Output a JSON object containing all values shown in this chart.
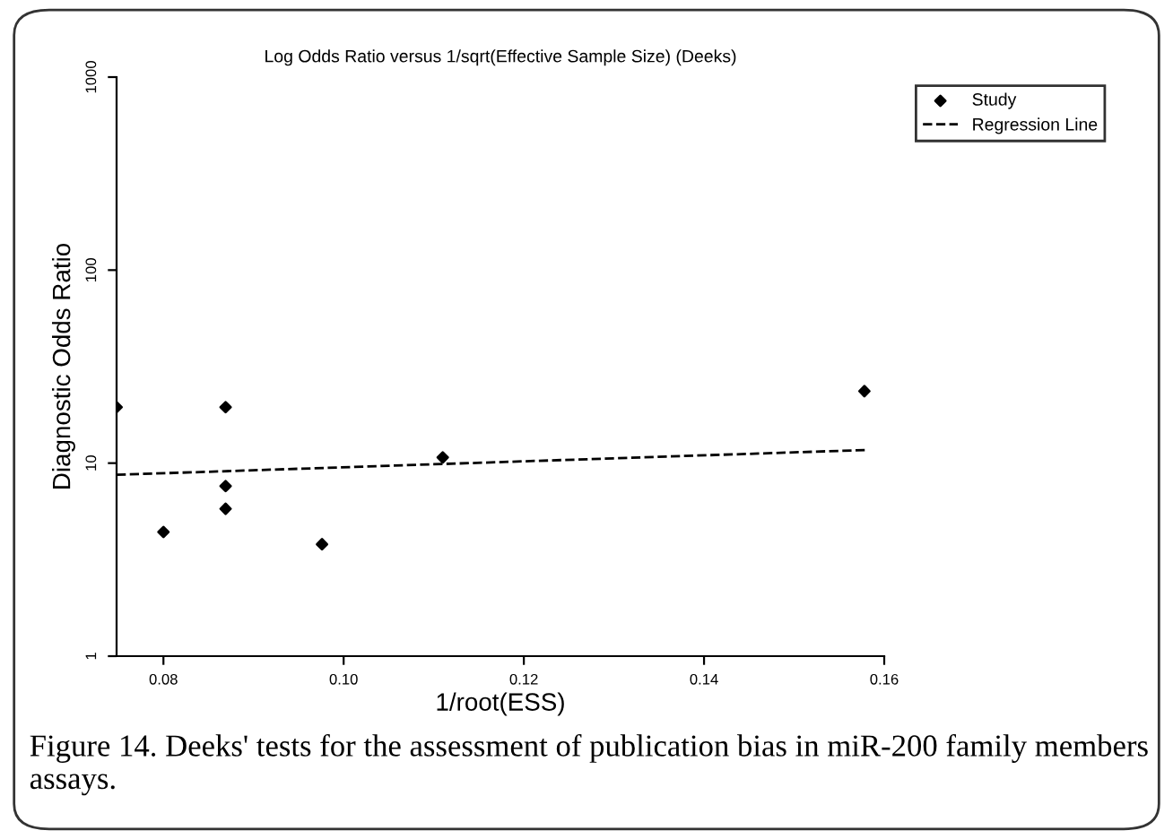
{
  "chart_data": {
    "type": "scatter",
    "title": "Log Odds Ratio versus 1/sqrt(Effective Sample Size) (Deeks)",
    "xlabel": "1/root(ESS)",
    "ylabel": "Diagnostic Odds Ratio",
    "annotations": [
      "Figure 14. Deeks' tests for the assessment of publication bias in miR-200 family members assays."
    ],
    "log": "y",
    "xlim": [
      0.0748,
      0.16
    ],
    "ylim": [
      1,
      1000
    ],
    "xticks": [
      {
        "value": 0.08,
        "label": "0.08"
      },
      {
        "value": 0.1,
        "label": "0.10"
      },
      {
        "value": 0.12,
        "label": "0.12"
      },
      {
        "value": 0.14,
        "label": "0.14"
      },
      {
        "value": 0.16,
        "label": "0.16"
      }
    ],
    "yticks": [
      1,
      10,
      100,
      1000
    ],
    "grid": false,
    "legend": "top right",
    "series": [
      {
        "name": "Study",
        "color": "#000000",
        "marker": "diamond",
        "x": [
          0.0748,
          0.08,
          0.0869,
          0.0869,
          0.0869,
          0.0976,
          0.111,
          0.1578
        ],
        "values": [
          19.5,
          4.4,
          19.5,
          7.6,
          5.8,
          3.8,
          10.7,
          23.6
        ]
      },
      {
        "name": "Regression Line",
        "type": "line",
        "color": "#000000",
        "line_style": "dashed",
        "marker": "none",
        "x": [
          0.0748,
          0.158
        ],
        "values": [
          8.7,
          11.7
        ]
      }
    ]
  }
}
